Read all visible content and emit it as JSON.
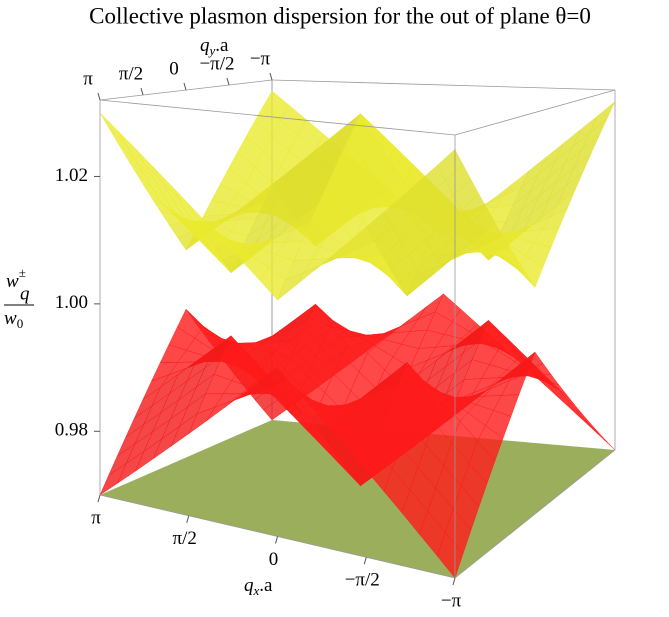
{
  "chart_data": {
    "type": "surface3d",
    "title": "Collective plasmon dispersion for the out of plane θ=0",
    "x_label": {
      "main": "q",
      "sub": "x",
      "rest": ".a"
    },
    "y_label": {
      "main": "q",
      "sub": "y",
      "rest": ".a"
    },
    "z_label": {
      "numerator": "w",
      "num_sub": "q",
      "num_sup": "±",
      "denominator": "w",
      "den_sub": "0"
    },
    "x": [
      -3.14159,
      -1.5708,
      0,
      1.5708,
      3.14159
    ],
    "y": [
      -3.14159,
      -1.5708,
      0,
      1.5708,
      3.14159
    ],
    "xlim": [
      3.14159,
      -3.14159
    ],
    "ylim": [
      3.14159,
      -3.14159
    ],
    "zlim": [
      0.97,
      1.032
    ],
    "xticks": [
      {
        "value": 3.14159,
        "label": "π"
      },
      {
        "value": 1.5708,
        "label": "π/2"
      },
      0,
      {
        "value": -1.5708,
        "label": "−π/2"
      },
      {
        "value": -3.14159,
        "label": "−π"
      }
    ],
    "yticks": [
      {
        "value": 3.14159,
        "label": "π"
      },
      {
        "value": 1.5708,
        "label": "π/2"
      },
      0,
      {
        "value": -1.5708,
        "label": "−π/2"
      },
      {
        "value": -3.14159,
        "label": "−π"
      }
    ],
    "zticks": [
      0.98,
      {
        "value": 1,
        "label": "1.00"
      },
      1.02
    ],
    "surfaces": [
      {
        "color": "#ff1a1a",
        "z": [
          [
            0.97,
            0.9825,
            0.995,
            0.9825,
            0.97
          ],
          [
            0.9825,
            0.995,
            0.9825,
            0.995,
            0.9825
          ],
          [
            0.995,
            0.9825,
            0.97,
            0.9825,
            0.995
          ],
          [
            0.9825,
            0.995,
            0.9825,
            0.995,
            0.9825
          ],
          [
            0.97,
            0.9825,
            0.995,
            0.9825,
            0.97
          ]
        ]
      },
      {
        "color": "#eaea30",
        "z": [
          [
            1.03,
            1.0175,
            1.005,
            1.0175,
            1.03
          ],
          [
            1.0175,
            1.005,
            1.0175,
            1.005,
            1.0175
          ],
          [
            1.005,
            1.0175,
            1.03,
            1.0175,
            1.005
          ],
          [
            1.0175,
            1.005,
            1.0175,
            1.005,
            1.0175
          ],
          [
            1.03,
            1.0175,
            1.005,
            1.0175,
            1.03
          ]
        ]
      }
    ]
  }
}
